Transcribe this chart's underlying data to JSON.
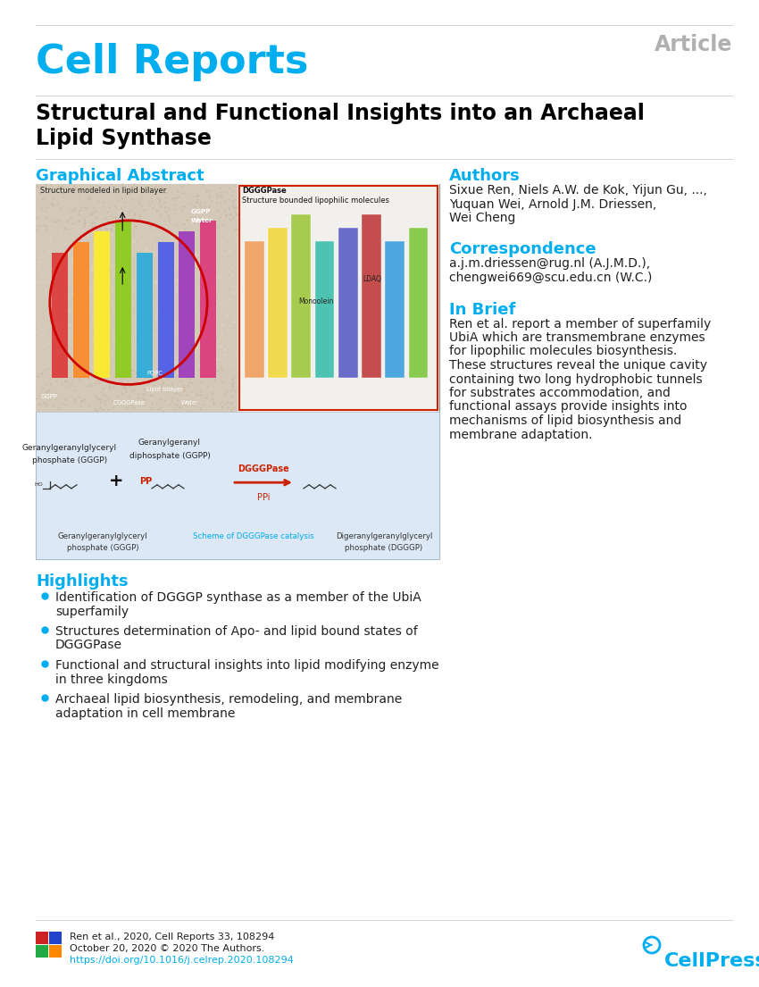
{
  "bg_color": "#ffffff",
  "cell_reports_color": "#00aeef",
  "article_color": "#b0b0b0",
  "section_header_color": "#00aeef",
  "title_color": "#000000",
  "body_color": "#231f20",
  "link_color": "#00aeef",
  "cell_reports_text": "Cell Reports",
  "article_text": "Article",
  "paper_title_line1": "Structural and Functional Insights into an Archaeal",
  "paper_title_line2": "Lipid Synthase",
  "graphical_abstract_label": "Graphical Abstract",
  "authors_label": "Authors",
  "authors_line1": "Sixue Ren, Niels A.W. de Kok, Yijun Gu, ...,",
  "authors_line2": "Yuquan Wei, Arnold J.M. Driessen,",
  "authors_line3": "Wei Cheng",
  "correspondence_label": "Correspondence",
  "correspondence_line1": "a.j.m.driessen@rug.nl (A.J.M.D.),",
  "correspondence_line2": "chengwei669@scu.edu.cn (W.C.)",
  "in_brief_label": "In Brief",
  "in_brief_lines": [
    "Ren et al. report a member of superfamily",
    "UbiA which are transmembrane enzymes",
    "for lipophilic molecules biosynthesis.",
    "These structures reveal the unique cavity",
    "containing two long hydrophobic tunnels",
    "for substrates accommodation, and",
    "functional assays provide insights into",
    "mechanisms of lipid biosynthesis and",
    "membrane adaptation."
  ],
  "highlights_label": "Highlights",
  "highlights": [
    [
      "Identification of DGGGP synthase as a member of the UbiA",
      "superfamily"
    ],
    [
      "Structures determination of Apo- and lipid bound states of",
      "DGGGPase"
    ],
    [
      "Functional and structural insights into lipid modifying enzyme",
      "in three kingdoms"
    ],
    [
      "Archaeal lipid biosynthesis, remodeling, and membrane",
      "adaptation in cell membrane"
    ]
  ],
  "footer_citation": "Ren et al., 2020, Cell Reports 33, 108294",
  "footer_date": "October 20, 2020 © 2020 The Authors.",
  "footer_doi": "https://doi.org/10.1016/j.celrep.2020.108294",
  "cellpress_text": "CellPress",
  "ga_top_left_label": "Structure modeled in lipid bilayer",
  "ga_top_right_label": "Structure bounded lipophilic molecules",
  "ga_dgggpase_label": "DGGGPase",
  "ga_ggpp_label": "GGPP",
  "ga_water_label": "Water",
  "ga_popc_label": "POPC",
  "ga_lipid_label": "Lipid bilayer",
  "ga_ldaq_label": "LDAQ",
  "ga_monoolein_label": "Monoolein",
  "rxn_left_label1": "Geranylgeranylglyceryl",
  "rxn_left_label2": "phosphate (GGGP)",
  "rxn_mid_top1": "Geranylgeranyl",
  "rxn_mid_top2": "diphosphate (GGPP)",
  "rxn_right_label1": "Digeranylgeranylglyceryl",
  "rxn_right_label2": "phosphate (DGGGP)",
  "rxn_enzyme": "DGGGPase",
  "rxn_ppi": "PPi",
  "rxn_pp": "PP",
  "rxn_scheme_label": "Scheme of DGGGPase catalysis"
}
